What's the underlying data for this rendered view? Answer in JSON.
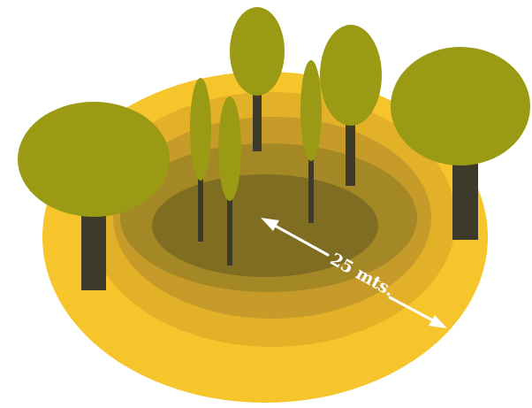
{
  "diagram": {
    "distance_label": "25 mts.",
    "colors": {
      "ring_outer": "#F6C52C",
      "ring_2": "#E2B127",
      "ring_3": "#C69B29",
      "ring_4": "#A58826",
      "ring_center": "#7F6E21",
      "canopy": "#9A9A14",
      "trunk": "#3D3A2B",
      "arrow": "#FFFFFF",
      "label": "#FFFFFF"
    },
    "trees": [
      {
        "kind": "large-left"
      },
      {
        "kind": "large-right"
      },
      {
        "kind": "back-left"
      },
      {
        "kind": "back-right"
      },
      {
        "kind": "thin"
      },
      {
        "kind": "thin"
      },
      {
        "kind": "thin"
      }
    ]
  }
}
